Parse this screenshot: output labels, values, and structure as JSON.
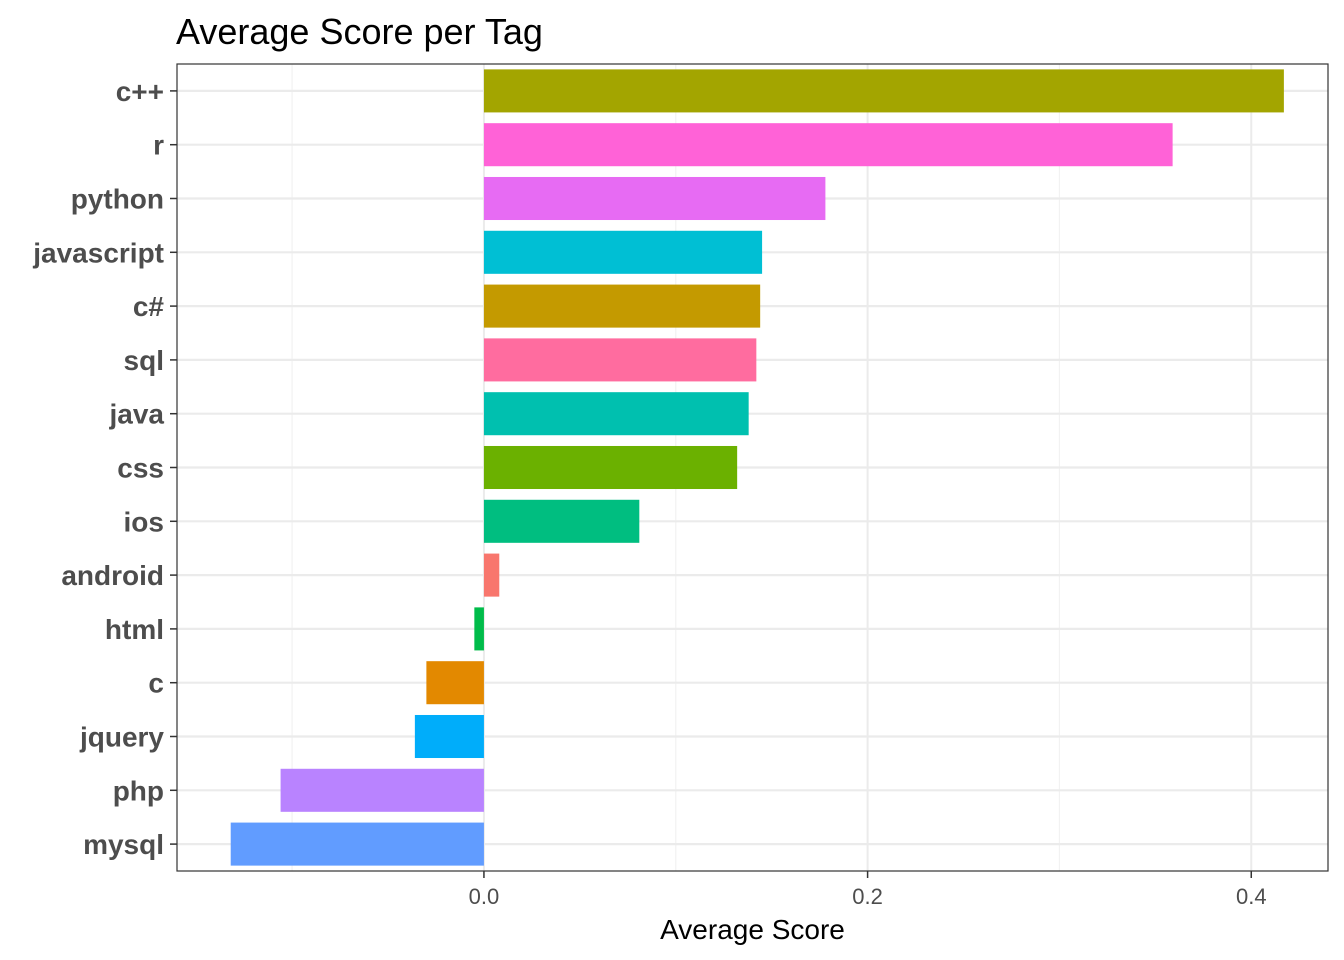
{
  "chart_data": {
    "type": "bar",
    "orientation": "horizontal",
    "title": "Average Score per Tag",
    "xlabel": "Average Score",
    "ylabel": "",
    "categories": [
      "c++",
      "r",
      "python",
      "javascript",
      "c#",
      "sql",
      "java",
      "css",
      "ios",
      "android",
      "html",
      "c",
      "jquery",
      "php",
      "mysql"
    ],
    "values": [
      0.417,
      0.359,
      0.178,
      0.145,
      0.144,
      0.142,
      0.138,
      0.132,
      0.081,
      0.008,
      -0.005,
      -0.03,
      -0.036,
      -0.106,
      -0.132
    ],
    "colors": [
      "#A3A500",
      "#FF62D7",
      "#E76BF3",
      "#00BFD4",
      "#C49A00",
      "#FF6C9F",
      "#00C0AF",
      "#6BB100",
      "#00BE80",
      "#F8766D",
      "#00BC4A",
      "#E38900",
      "#00ADFA",
      "#B983FF",
      "#619CFF"
    ],
    "xlim": [
      -0.16,
      0.44
    ],
    "xticks": [
      0.0,
      0.2,
      0.4
    ],
    "xtick_labels": [
      "0.0",
      "0.2",
      "0.4"
    ],
    "grid": true,
    "legend": "none"
  }
}
